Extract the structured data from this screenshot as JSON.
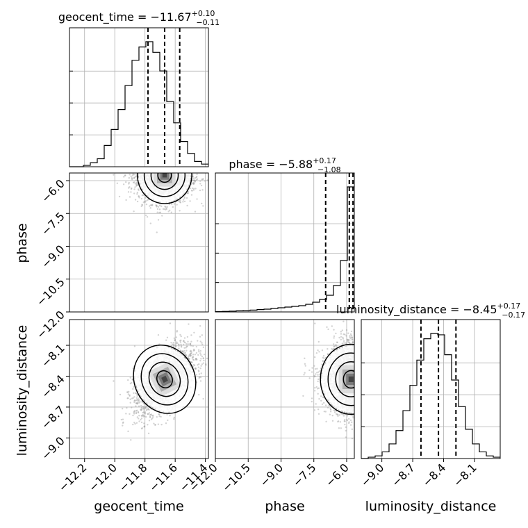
{
  "chart_data": {
    "type": "corner",
    "parameters": [
      "geocent_time",
      "phase",
      "luminosity_distance"
    ],
    "titles": [
      {
        "param": "geocent_time",
        "lhs": "geocent_time = ",
        "median": "−11.67",
        "plus": "+0.10",
        "minus": "−0.11"
      },
      {
        "param": "phase",
        "lhs": "phase = ",
        "median": "−5.88",
        "plus": "+0.17",
        "minus": "−1.08"
      },
      {
        "param": "luminosity_distance",
        "lhs": "luminosity_distance = ",
        "median": "−8.45",
        "plus": "+0.17",
        "minus": "−0.17"
      }
    ],
    "xlabels": [
      "geocent_time",
      "phase",
      "luminosity_distance"
    ],
    "ylabels": [
      "",
      "phase",
      "luminosity_distance"
    ],
    "ranges": {
      "geocent_time": [
        -12.3,
        -11.38
      ],
      "phase": [
        -12.0,
        -5.65
      ],
      "luminosity_distance": [
        -9.2,
        -7.85
      ]
    },
    "ticks": {
      "geocent_time": [
        -12.2,
        -12.0,
        -11.8,
        -11.6,
        -11.4
      ],
      "phase": [
        -12.0,
        -10.5,
        -9.0,
        -7.5,
        -6.0
      ],
      "luminosity_distance": [
        -9.0,
        -8.7,
        -8.4,
        -8.1
      ]
    },
    "tick_labels": {
      "geocent_time": [
        "−12.2",
        "−12.0",
        "−11.8",
        "−11.6",
        "−11.4"
      ],
      "phase": [
        "−12.0",
        "−10.5",
        "−9.0",
        "−7.5",
        "−6.0"
      ],
      "luminosity_distance": [
        "−9.0",
        "−8.7",
        "−8.4",
        "−8.1"
      ]
    },
    "quantiles": {
      "geocent_time": [
        -11.78,
        -11.67,
        -11.57
      ],
      "phase": [
        -6.96,
        -5.88,
        -5.71
      ],
      "luminosity_distance": [
        -8.62,
        -8.45,
        -8.28
      ]
    },
    "histograms": {
      "geocent_time": {
        "bin_edges_start": -12.3,
        "bin_width": 0.046,
        "counts": [
          0,
          0,
          0.01,
          0.03,
          0.06,
          0.16,
          0.28,
          0.43,
          0.61,
          0.8,
          0.9,
          0.94,
          0.86,
          0.72,
          0.49,
          0.33,
          0.19,
          0.1,
          0.04,
          0.02
        ]
      },
      "phase": {
        "bin_edges_start": -12.0,
        "bin_width": 0.3175,
        "counts": [
          0.002,
          0.004,
          0.006,
          0.008,
          0.01,
          0.013,
          0.017,
          0.02,
          0.025,
          0.03,
          0.035,
          0.04,
          0.045,
          0.055,
          0.07,
          0.09,
          0.12,
          0.19,
          0.37,
          0.9
        ]
      },
      "luminosity_distance": {
        "bin_edges_start": -9.2,
        "bin_width": 0.0675,
        "counts": [
          0,
          0.01,
          0.02,
          0.05,
          0.11,
          0.21,
          0.36,
          0.55,
          0.74,
          0.9,
          0.94,
          0.93,
          0.78,
          0.59,
          0.39,
          0.22,
          0.11,
          0.05,
          0.02,
          0.01
        ]
      }
    },
    "scatter_2d": [
      {
        "x": "geocent_time",
        "y": "phase",
        "center": [
          -11.67,
          -5.75
        ],
        "spread": [
          0.09,
          0.65
        ],
        "correlation": 0.0,
        "n_points": 1800
      },
      {
        "x": "geocent_time",
        "y": "luminosity_distance",
        "center": [
          -11.67,
          -8.43
        ],
        "spread": [
          0.1,
          0.17
        ],
        "correlation": 0.55,
        "n_points": 2200
      },
      {
        "x": "phase",
        "y": "luminosity_distance",
        "center": [
          -5.8,
          -8.43
        ],
        "spread": [
          0.7,
          0.17
        ],
        "correlation": 0.0,
        "n_points": 1900
      }
    ],
    "grid": true,
    "colors": {
      "hist": "#000000",
      "points": "#9e9e9e",
      "contour": "#000000",
      "quantile": "#000000",
      "grid": "#b0b0b0"
    }
  }
}
